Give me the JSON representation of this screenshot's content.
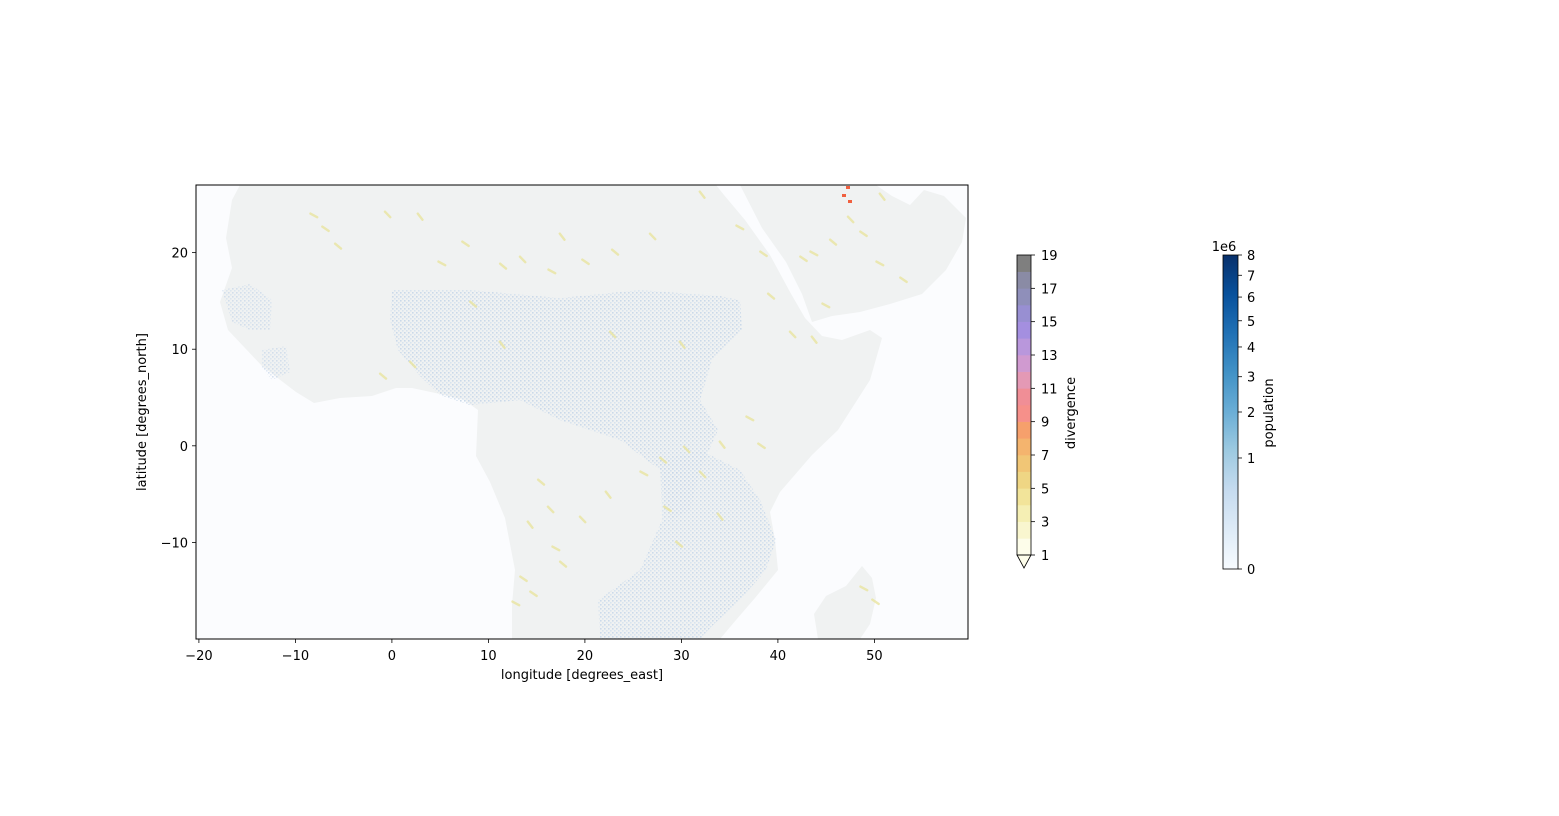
{
  "chart_data": {
    "type": "heatmap",
    "title": "",
    "xlabel": "longitude [degrees_east]",
    "ylabel": "latitude [degrees_north]",
    "xlim": [
      -20.3,
      59.7
    ],
    "ylim": [
      -20.0,
      27.0
    ],
    "x_ticks": [
      -20,
      -10,
      0,
      10,
      20,
      30,
      40,
      50
    ],
    "x_tick_labels": [
      "−20",
      "−10",
      "0",
      "10",
      "20",
      "30",
      "40",
      "50"
    ],
    "y_ticks": [
      20,
      10,
      0,
      -10
    ],
    "y_tick_labels": [
      "20",
      "10",
      "0",
      "−10"
    ],
    "grid": false,
    "colors": {
      "ocean": "#fbfcfe",
      "land": "#f0f2f2",
      "population_overlay": "#c7d8ea",
      "divergence_low": "#e8e39a",
      "divergence_high": "#f06040"
    },
    "layers": [
      {
        "name": "divergence",
        "colorbar": {
          "label": "divergence",
          "ticks": [
            1,
            3,
            5,
            7,
            9,
            11,
            13,
            15,
            17,
            19
          ],
          "tick_labels": [
            "1",
            "3",
            "5",
            "7",
            "9",
            "11",
            "13",
            "15",
            "17",
            "19"
          ],
          "range": [
            1,
            19
          ],
          "extend": "min",
          "levels": [
            {
              "from": 1,
              "to": 2,
              "color": "#fdfdea"
            },
            {
              "from": 2,
              "to": 3,
              "color": "#f9f6cf"
            },
            {
              "from": 3,
              "to": 4,
              "color": "#f5efb4"
            },
            {
              "from": 4,
              "to": 5,
              "color": "#f2e49a"
            },
            {
              "from": 5,
              "to": 6,
              "color": "#efd684"
            },
            {
              "from": 6,
              "to": 7,
              "color": "#f1c676"
            },
            {
              "from": 7,
              "to": 8,
              "color": "#f4b46e"
            },
            {
              "from": 8,
              "to": 9,
              "color": "#f6a06c"
            },
            {
              "from": 9,
              "to": 10,
              "color": "#f6908a"
            },
            {
              "from": 10,
              "to": 11,
              "color": "#f08e96"
            },
            {
              "from": 11,
              "to": 12,
              "color": "#e499b5"
            },
            {
              "from": 12,
              "to": 13,
              "color": "#d09ad0"
            },
            {
              "from": 13,
              "to": 14,
              "color": "#b997dc"
            },
            {
              "from": 14,
              "to": 15,
              "color": "#a48fe0"
            },
            {
              "from": 15,
              "to": 16,
              "color": "#988fd2"
            },
            {
              "from": 16,
              "to": 17,
              "color": "#8f8fba"
            },
            {
              "from": 17,
              "to": 18,
              "color": "#8a8ba5"
            },
            {
              "from": 18,
              "to": 19,
              "color": "#7f7f7f"
            }
          ]
        }
      },
      {
        "name": "population",
        "colorbar": {
          "label": "population",
          "scale": "power",
          "exponent": 0.5,
          "multiplier_label": "1e6",
          "range": [
            0,
            8000000
          ],
          "ticks": [
            0,
            1,
            2,
            3,
            4,
            5,
            6,
            7,
            8
          ],
          "tick_labels": [
            "0",
            "1",
            "2",
            "3",
            "4",
            "5",
            "6",
            "7",
            "8"
          ],
          "cmap_stops": [
            "#f7fbff",
            "#deebf7",
            "#c6dbef",
            "#9ecae1",
            "#6baed6",
            "#4292c6",
            "#2171b5",
            "#08519c",
            "#08306b"
          ]
        }
      }
    ]
  }
}
